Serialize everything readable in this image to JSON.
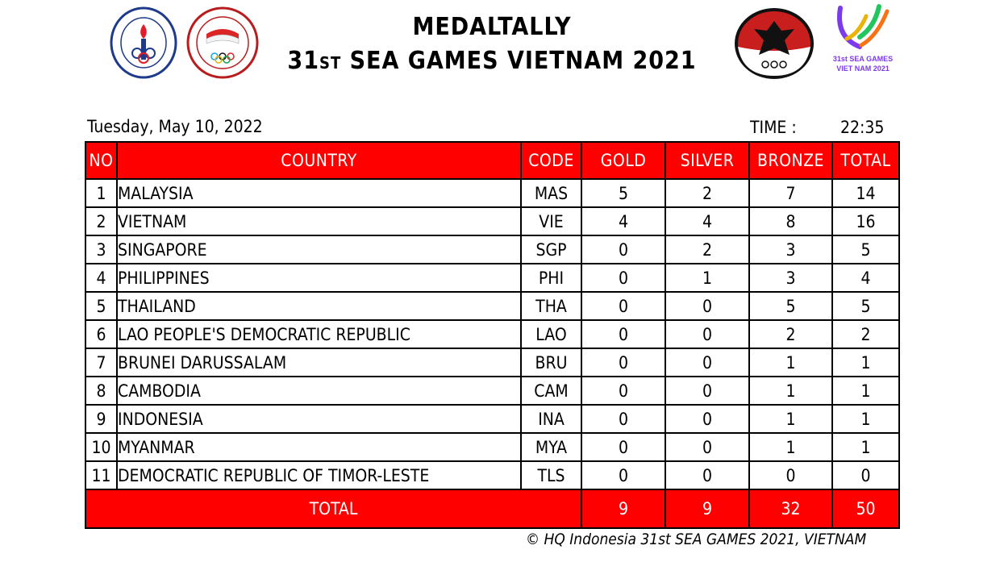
{
  "header": {
    "title_line1": "MEDALTALLY",
    "title_line2_prefix": "31",
    "title_line2_ordinal": "ST",
    "title_line2_rest": " SEA GAMES VIETNAM 2021"
  },
  "logos": {
    "kemenpora": {
      "name": "kemenpora-logo",
      "text": "KEMENTERIAN PEMUDA DAN OLAHRAGA · REPUBLIK INDONESIA"
    },
    "koi": {
      "name": "koi-logo",
      "text": "KOMITE OLIMPIADE INDONESIA · INDONESIA OLYMPIC COMMITTEE",
      "center_text": "INDONESIA"
    },
    "tim_indonesia": {
      "name": "tim-indonesia-logo",
      "text": "TIM INDONESIA"
    },
    "sea_games": {
      "name": "sea-games-logo",
      "line1": "31st SEA GAMES",
      "line2": "VIET NAM 2021"
    }
  },
  "date": "Tuesday, May 10, 2022",
  "time_label": "TIME :",
  "time_value": "22:35",
  "table": {
    "columns": [
      "NO",
      "COUNTRY",
      "CODE",
      "GOLD",
      "SILVER",
      "BRONZE",
      "TOTAL"
    ],
    "rows": [
      {
        "no": "1",
        "country": "MALAYSIA",
        "code": "MAS",
        "gold": "5",
        "silver": "2",
        "bronze": "7",
        "total": "14"
      },
      {
        "no": "2",
        "country": "VIETNAM",
        "code": "VIE",
        "gold": "4",
        "silver": "4",
        "bronze": "8",
        "total": "16"
      },
      {
        "no": "3",
        "country": "SINGAPORE",
        "code": "SGP",
        "gold": "0",
        "silver": "2",
        "bronze": "3",
        "total": "5"
      },
      {
        "no": "4",
        "country": "PHILIPPINES",
        "code": "PHI",
        "gold": "0",
        "silver": "1",
        "bronze": "3",
        "total": "4"
      },
      {
        "no": "5",
        "country": "THAILAND",
        "code": "THA",
        "gold": "0",
        "silver": "0",
        "bronze": "5",
        "total": "5"
      },
      {
        "no": "6",
        "country": "LAO PEOPLE'S DEMOCRATIC REPUBLIC",
        "code": "LAO",
        "gold": "0",
        "silver": "0",
        "bronze": "2",
        "total": "2"
      },
      {
        "no": "7",
        "country": "BRUNEI DARUSSALAM",
        "code": "BRU",
        "gold": "0",
        "silver": "0",
        "bronze": "1",
        "total": "1"
      },
      {
        "no": "8",
        "country": "CAMBODIA",
        "code": "CAM",
        "gold": "0",
        "silver": "0",
        "bronze": "1",
        "total": "1"
      },
      {
        "no": "9",
        "country": "INDONESIA",
        "code": "INA",
        "gold": "0",
        "silver": "0",
        "bronze": "1",
        "total": "1"
      },
      {
        "no": "10",
        "country": "MYANMAR",
        "code": "MYA",
        "gold": "0",
        "silver": "0",
        "bronze": "1",
        "total": "1"
      },
      {
        "no": "11",
        "country": "DEMOCRATIC REPUBLIC OF TIMOR-LESTE",
        "code": "TLS",
        "gold": "0",
        "silver": "0",
        "bronze": "0",
        "total": "0"
      }
    ],
    "total": {
      "label": "TOTAL",
      "gold": "9",
      "silver": "9",
      "bronze": "32",
      "total": "50"
    }
  },
  "footer": "© HQ Indonesia 31st SEA GAMES 2021, VIETNAM",
  "colors": {
    "header_bg": "#ff0000",
    "header_text": "#ffffff",
    "border": "#000000"
  }
}
